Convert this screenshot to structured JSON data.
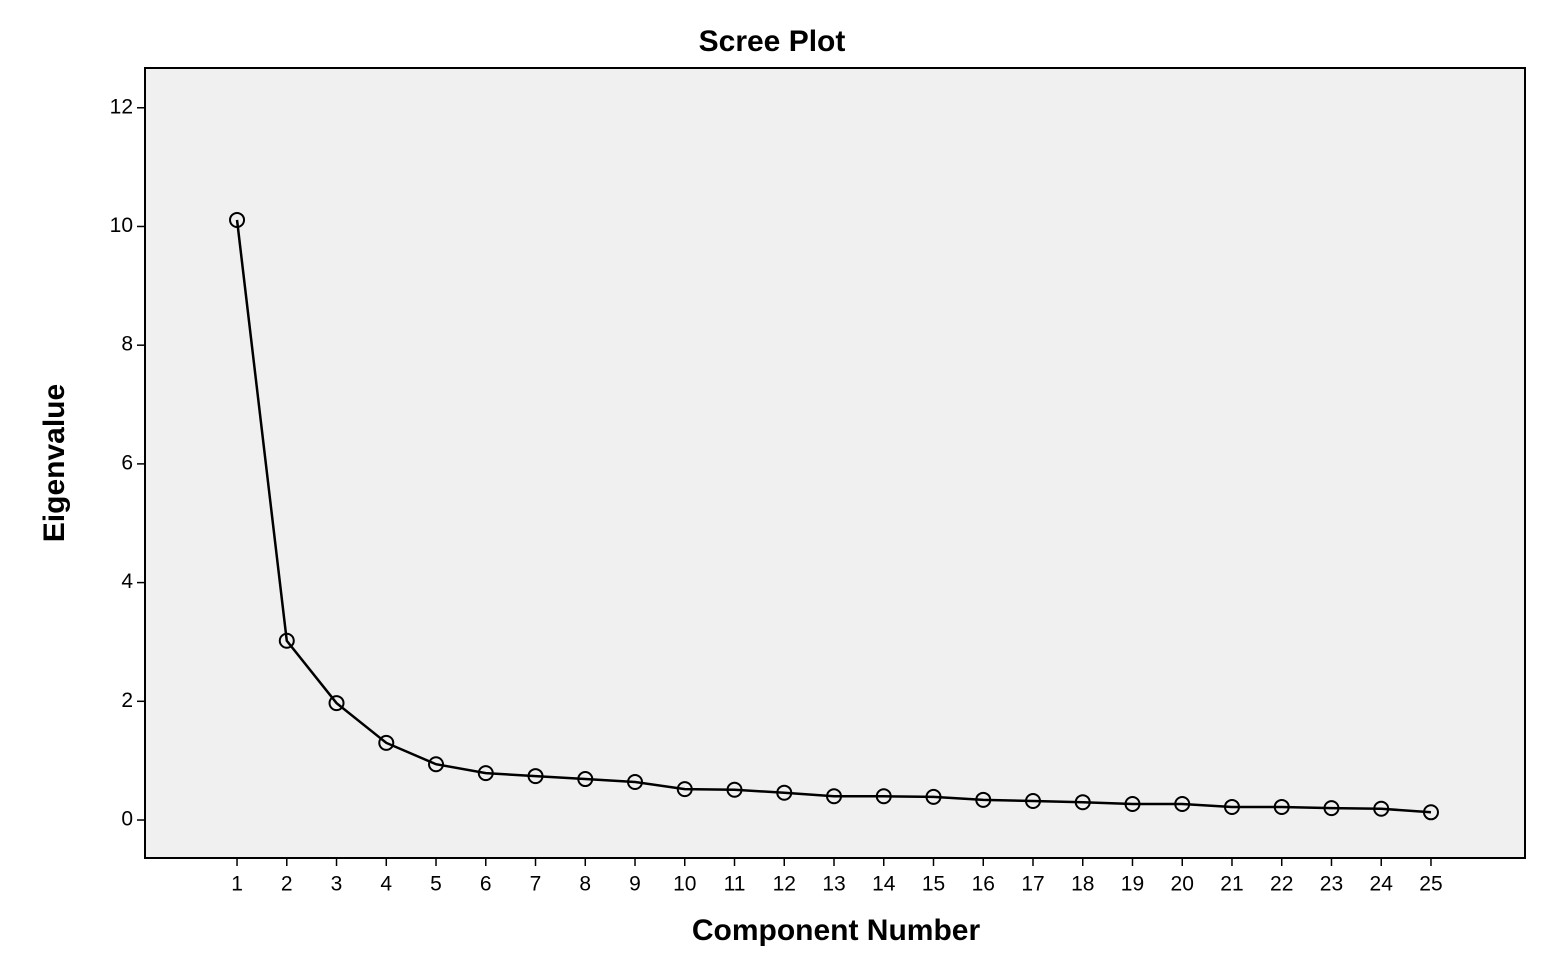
{
  "chart_data": {
    "type": "line",
    "title": "Scree Plot",
    "x_label": "Component Number",
    "y_label": "Eigenvalue",
    "x": [
      1,
      2,
      3,
      4,
      5,
      6,
      7,
      8,
      9,
      10,
      11,
      12,
      13,
      14,
      15,
      16,
      17,
      18,
      19,
      20,
      21,
      22,
      23,
      24,
      25
    ],
    "series": [
      {
        "name": "Eigenvalue",
        "color": "#000000",
        "values": [
          10.11,
          3.02,
          1.97,
          1.3,
          0.94,
          0.79,
          0.74,
          0.69,
          0.64,
          0.52,
          0.51,
          0.46,
          0.4,
          0.4,
          0.39,
          0.34,
          0.32,
          0.3,
          0.27,
          0.27,
          0.22,
          0.22,
          0.2,
          0.19,
          0.13
        ]
      }
    ],
    "xlim": [
      -0.85,
      26.89
    ],
    "xticks": [
      1,
      2,
      3,
      4,
      5,
      6,
      7,
      8,
      9,
      10,
      11,
      12,
      13,
      14,
      15,
      16,
      17,
      18,
      19,
      20,
      21,
      22,
      23,
      24,
      25
    ],
    "ylim": [
      -0.64,
      12.67
    ],
    "yticks": [
      0,
      2,
      4,
      6,
      8,
      10,
      12
    ],
    "background": "#f0f0f0",
    "markers": true
  }
}
